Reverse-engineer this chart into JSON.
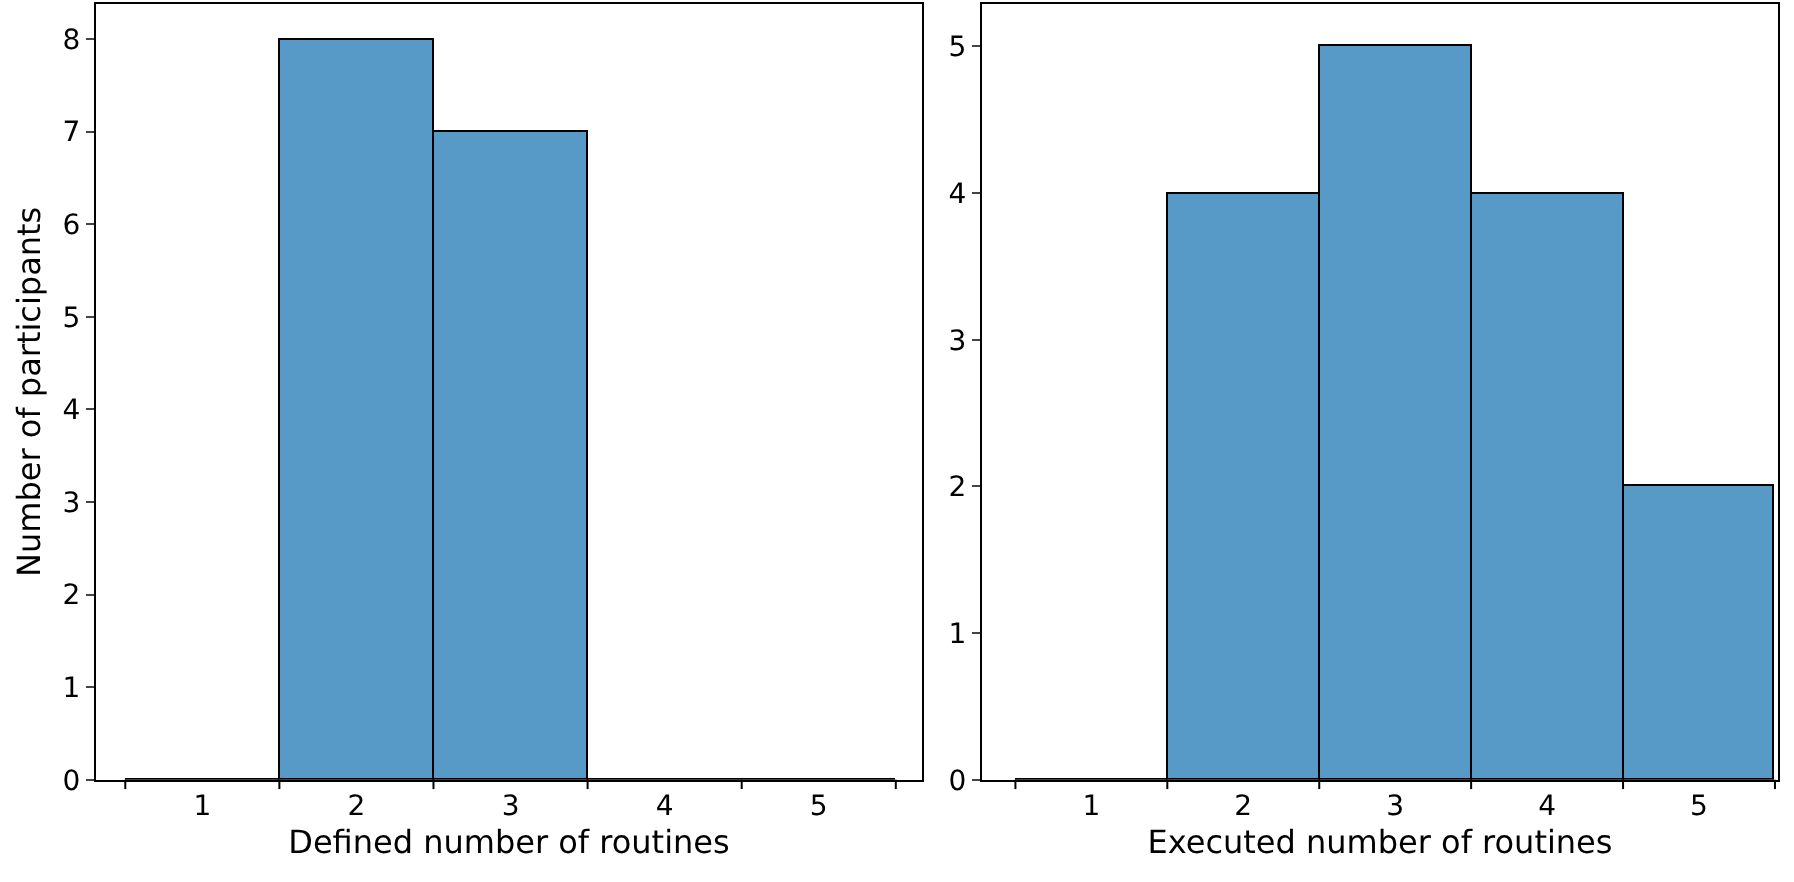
{
  "chart_data": [
    {
      "type": "histogram",
      "xlabel": "Defined number of routines",
      "ylabel": "Number of participants",
      "bins": [
        0.5,
        1.5,
        2.5,
        3.5,
        4.5,
        5.5
      ],
      "values": [
        0,
        8,
        7,
        0,
        0
      ],
      "color": "#5799c7",
      "xlim": [
        0.31,
        5.67
      ],
      "xticks": [
        {
          "value": 0.5,
          "label": null
        },
        1,
        {
          "value": 1.5,
          "label": null
        },
        2,
        {
          "value": 2.5,
          "label": null
        },
        3,
        {
          "value": 3.5,
          "label": null
        },
        4,
        {
          "value": 4.5,
          "label": null
        },
        5,
        {
          "value": 5.5,
          "label": null
        }
      ],
      "ylim": [
        0,
        8.38
      ],
      "yticks": [
        0,
        1,
        2,
        3,
        4,
        5,
        6,
        7,
        8
      ]
    },
    {
      "type": "histogram",
      "xlabel": "Executed number of routines",
      "bins": [
        0.5,
        1.5,
        2.5,
        3.5,
        4.5,
        5.5
      ],
      "values": [
        0,
        4,
        5,
        4,
        2
      ],
      "color": "#5799c7",
      "xlim": [
        0.28,
        5.52
      ],
      "xticks": [
        {
          "value": 0.5,
          "label": null
        },
        1,
        {
          "value": 1.5,
          "label": null
        },
        2,
        {
          "value": 2.5,
          "label": null
        },
        3,
        {
          "value": 3.5,
          "label": null
        },
        4,
        {
          "value": 4.5,
          "label": null
        },
        5,
        {
          "value": 5.5,
          "label": null
        }
      ],
      "ylim": [
        0,
        5.29
      ],
      "yticks": [
        0,
        1,
        2,
        3,
        4,
        5
      ]
    }
  ]
}
